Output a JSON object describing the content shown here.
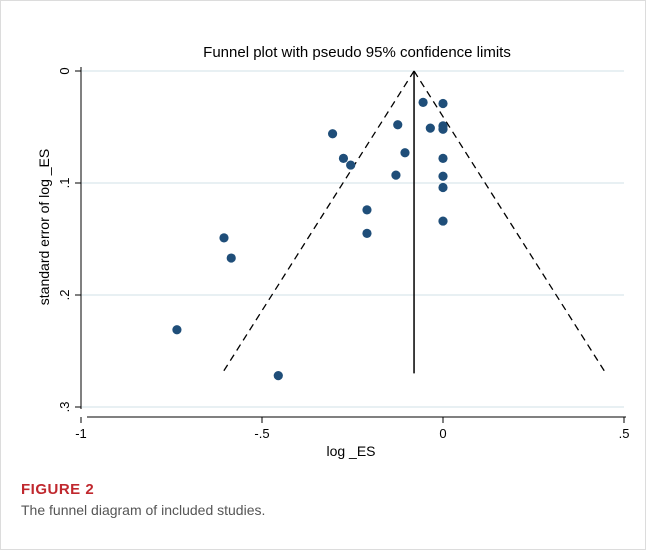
{
  "chart_data": {
    "type": "scatter",
    "title": "Funnel plot with pseudo 95% confidence limits",
    "xlabel": "log _ES",
    "ylabel": "standard error of log _ES",
    "xlim": [
      -1.0,
      0.5
    ],
    "ylim": [
      0.0,
      0.3
    ],
    "y_reversed": true,
    "xticks": [
      {
        "value": -1,
        "label": "-1"
      },
      {
        "value": -0.5,
        "label": "-.5"
      },
      {
        "value": 0,
        "label": "0"
      },
      {
        "value": 0.5,
        "label": ".5"
      }
    ],
    "yticks": [
      {
        "value": 0,
        "label": "0"
      },
      {
        "value": 0.1,
        "label": ".1"
      },
      {
        "value": 0.2,
        "label": ".2"
      },
      {
        "value": 0.3,
        "label": ".3"
      }
    ],
    "grid": "horizontal",
    "pooled_effect": -0.08,
    "funnel_apex": {
      "x": -0.08,
      "y": 0.0
    },
    "funnel_base_se": 0.27,
    "funnel_base_left": -0.61,
    "funnel_base_right": 0.45,
    "points": [
      {
        "x": -0.055,
        "y": 0.028
      },
      {
        "x": 0.0,
        "y": 0.029
      },
      {
        "x": -0.035,
        "y": 0.051
      },
      {
        "x": 0.0,
        "y": 0.049
      },
      {
        "x": 0.0,
        "y": 0.052
      },
      {
        "x": -0.125,
        "y": 0.048
      },
      {
        "x": -0.305,
        "y": 0.056
      },
      {
        "x": -0.275,
        "y": 0.078
      },
      {
        "x": -0.255,
        "y": 0.084
      },
      {
        "x": -0.105,
        "y": 0.073
      },
      {
        "x": 0.0,
        "y": 0.078
      },
      {
        "x": -0.13,
        "y": 0.093
      },
      {
        "x": 0.0,
        "y": 0.094
      },
      {
        "x": 0.0,
        "y": 0.104
      },
      {
        "x": -0.21,
        "y": 0.124
      },
      {
        "x": 0.0,
        "y": 0.134
      },
      {
        "x": -0.21,
        "y": 0.145
      },
      {
        "x": -0.605,
        "y": 0.149
      },
      {
        "x": -0.585,
        "y": 0.167
      },
      {
        "x": -0.735,
        "y": 0.231
      },
      {
        "x": -0.455,
        "y": 0.272
      }
    ],
    "point_color": "#1f4e79"
  },
  "caption": {
    "label": "FIGURE 2",
    "text": "The funnel diagram of included studies."
  },
  "colors": {
    "grid": "#d9e6ec",
    "axis": "#000000",
    "caption_label": "#c0282e"
  }
}
